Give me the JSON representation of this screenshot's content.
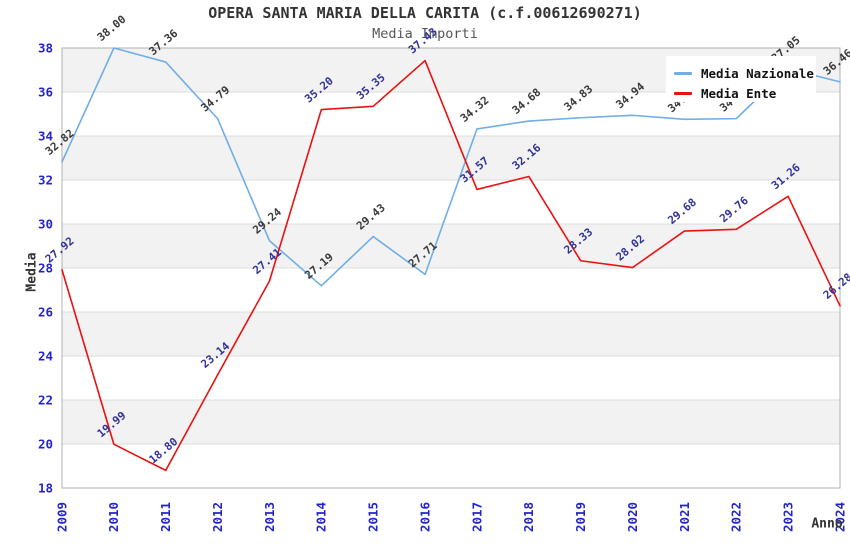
{
  "chart_data": {
    "type": "line",
    "title": "OPERA SANTA MARIA DELLA CARITA (c.f.00612690271)",
    "subtitle": "Media Importi",
    "xlabel": "Anno",
    "ylabel": "Media",
    "ylim": [
      18,
      38
    ],
    "ytick_step": 2,
    "grid": true,
    "legend_position": "top-right",
    "x": [
      "2009",
      "2010",
      "2011",
      "2012",
      "2013",
      "2014",
      "2015",
      "2016",
      "2017",
      "2018",
      "2019",
      "2020",
      "2021",
      "2022",
      "2023",
      "2024"
    ],
    "series": [
      {
        "name": "Media Nazionale",
        "color": "#6FAEE7",
        "label_color": "#3A3A3A",
        "values": [
          32.82,
          38.0,
          37.36,
          34.79,
          29.24,
          27.19,
          29.43,
          27.71,
          34.32,
          34.68,
          34.83,
          34.94,
          34.76,
          34.79,
          37.05,
          36.46
        ]
      },
      {
        "name": "Media Ente",
        "color": "#EC1111",
        "label_color": "#333399",
        "values": [
          27.92,
          19.99,
          18.8,
          23.14,
          27.41,
          35.2,
          35.35,
          37.43,
          31.57,
          32.16,
          28.33,
          28.02,
          29.68,
          29.76,
          31.26,
          26.28
        ]
      }
    ],
    "colors": {
      "band": "#F2F2F2",
      "grid": "#DCDCDC",
      "axis": "#B0B0B0",
      "tick_label": "#2424CC",
      "title": "#333333",
      "subtitle": "#555555"
    }
  }
}
